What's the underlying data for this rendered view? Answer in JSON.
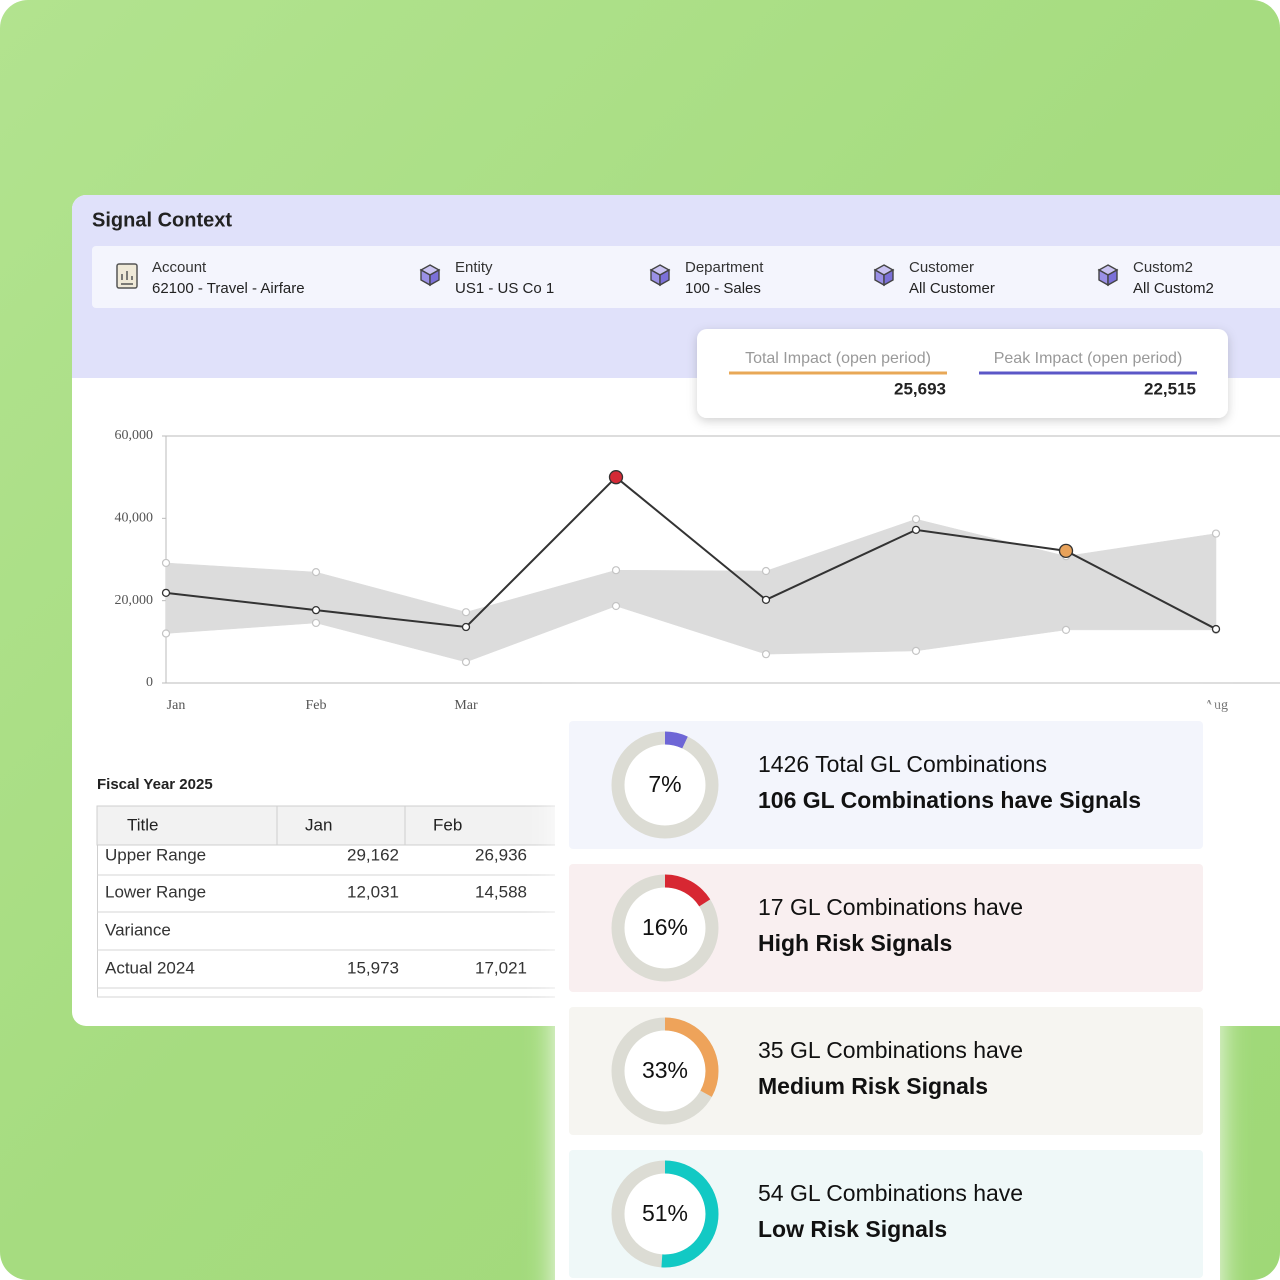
{
  "header": {
    "title": "Signal Context"
  },
  "context": [
    {
      "label": "Account",
      "value": "62100 - Travel - Airfare"
    },
    {
      "label": "Entity",
      "value": "US1 - US Co 1"
    },
    {
      "label": "Department",
      "value": "100 - Sales"
    },
    {
      "label": "Customer",
      "value": "All Customer"
    },
    {
      "label": "Custom2",
      "value": "All Custom2"
    }
  ],
  "impact": [
    {
      "label": "Total Impact (open period)",
      "value": "25,693",
      "color": "#e8a857"
    },
    {
      "label": "Peak Impact (open period)",
      "value": "22,515",
      "color": "#5b57c7"
    }
  ],
  "chart_data": {
    "type": "line",
    "categories": [
      "Jan",
      "Feb",
      "Mar",
      null,
      null,
      null,
      null,
      "Aug"
    ],
    "values": [
      21900,
      17700,
      13600,
      50000,
      20200,
      37200,
      32100,
      13100
    ],
    "upper": [
      29162,
      26936,
      17200,
      27400,
      27200,
      39800,
      30800,
      36300
    ],
    "lower": [
      12031,
      14588,
      5100,
      18700,
      7000,
      7800,
      12900,
      12900
    ],
    "color": "#333333",
    "band_color": "#dcdcdc",
    "marker_colors": [
      null,
      null,
      null,
      "#d42a36",
      null,
      null,
      "#e8a25a",
      null
    ],
    "ylim": [
      0,
      60000
    ],
    "yticks": [
      0,
      {
        "value": 20000,
        "label": "20,000"
      },
      {
        "value": 40000,
        "label": "40,000"
      },
      {
        "value": 60000,
        "label": "60,000"
      }
    ]
  },
  "table": {
    "title": "Fiscal Year 2025",
    "columns": [
      "Title",
      "Jan",
      "Feb"
    ],
    "rows": [
      [
        "Upper Range",
        "29,162",
        "26,936"
      ],
      [
        "Lower Range",
        "12,031",
        "14,588"
      ],
      [
        "Variance"
      ],
      [
        "Actual 2024",
        "15,973",
        "17,021"
      ]
    ]
  },
  "summary": [
    {
      "percent": 7,
      "percent_label": "7%",
      "lines": [
        "1426 Total GL Combinations",
        "106 GL Combinations have Signals"
      ],
      "color": "#6e66d6",
      "background": "#f3f5fc"
    },
    {
      "percent": 16,
      "percent_label": "16%",
      "lines": [
        "17 GL Combinations have",
        "High Risk Signals"
      ],
      "color": "#d72732",
      "background": "#f9eff0"
    },
    {
      "percent": 33,
      "percent_label": "33%",
      "lines": [
        "35 GL Combinations have",
        "Medium Risk Signals"
      ],
      "color": "#eea35a",
      "background": "#f6f5f1"
    },
    {
      "percent": 51,
      "percent_label": "51%",
      "lines": [
        "54 GL Combinations have",
        "Low Risk Signals"
      ],
      "color": "#12c9c4",
      "background": "#eff8f8"
    }
  ]
}
